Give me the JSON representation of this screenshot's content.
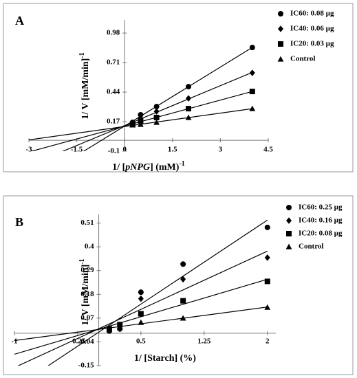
{
  "chart_data": [
    {
      "type": "scatter",
      "title": "A",
      "trendline": true,
      "xlabel": [
        "1/ [",
        "pNPG",
        "] (mM)",
        "-1"
      ],
      "ylabel": [
        "1/ V [mM/min]",
        "-1"
      ],
      "xlim": [
        -3,
        4.5
      ],
      "xticks": [
        -3,
        -1.5,
        0,
        1.5,
        3,
        4.5
      ],
      "ylim": [
        -0.1,
        1.1
      ],
      "yticks": [
        -0.1,
        0.17,
        0.44,
        0.71,
        0.98
      ],
      "x": [
        0.25,
        0.5,
        1,
        2,
        4
      ],
      "series": [
        {
          "name": "IC60: 0.08 µg",
          "marker": "circle",
          "color": "#000000",
          "values": [
            0.164,
            0.233,
            0.308,
            0.49,
            0.848
          ]
        },
        {
          "name": "IC40: 0.06 µg",
          "marker": "diamond",
          "color": "#000000",
          "values": [
            0.151,
            0.2,
            0.264,
            0.383,
            0.616
          ]
        },
        {
          "name": "IC20: 0.03 µg",
          "marker": "square",
          "color": "#000000",
          "values": [
            0.145,
            0.176,
            0.208,
            0.289,
            0.446
          ]
        },
        {
          "name": "Control",
          "marker": "triangle",
          "color": "#000000",
          "values": [
            0.139,
            0.145,
            0.164,
            0.208,
            0.289
          ]
        }
      ]
    },
    {
      "type": "scatter",
      "title": "B",
      "trendline": true,
      "xlabel": [
        "1/ [Starch] (%)"
      ],
      "ylabel": [
        "1/ V [mM/min]",
        "-1"
      ],
      "xlim": [
        -1,
        2.1
      ],
      "xticks": [
        -1,
        -0.25,
        0.5,
        1.25,
        2
      ],
      "ylim": [
        -0.15,
        0.55
      ],
      "yticks": [
        -0.15,
        -0.04,
        0.07,
        0.18,
        0.29,
        0.4,
        0.51
      ],
      "x": [
        0.125,
        0.25,
        0.5,
        1,
        2
      ],
      "series": [
        {
          "name": "IC60: 0.25 µg",
          "marker": "circle",
          "color": "#000000",
          "values": [
            0.01,
            0.02,
            0.19,
            0.32,
            0.49
          ]
        },
        {
          "name": "IC40: 0.16 µg",
          "marker": "diamond",
          "color": "#000000",
          "values": [
            0.02,
            0.02,
            0.16,
            0.25,
            0.35
          ]
        },
        {
          "name": "IC20: 0.08 µg",
          "marker": "square",
          "color": "#000000",
          "values": [
            0.02,
            0.04,
            0.09,
            0.15,
            0.24
          ]
        },
        {
          "name": "Control",
          "marker": "triangle",
          "color": "#000000",
          "values": [
            0.02,
            0.03,
            0.05,
            0.07,
            0.12
          ]
        }
      ]
    }
  ]
}
